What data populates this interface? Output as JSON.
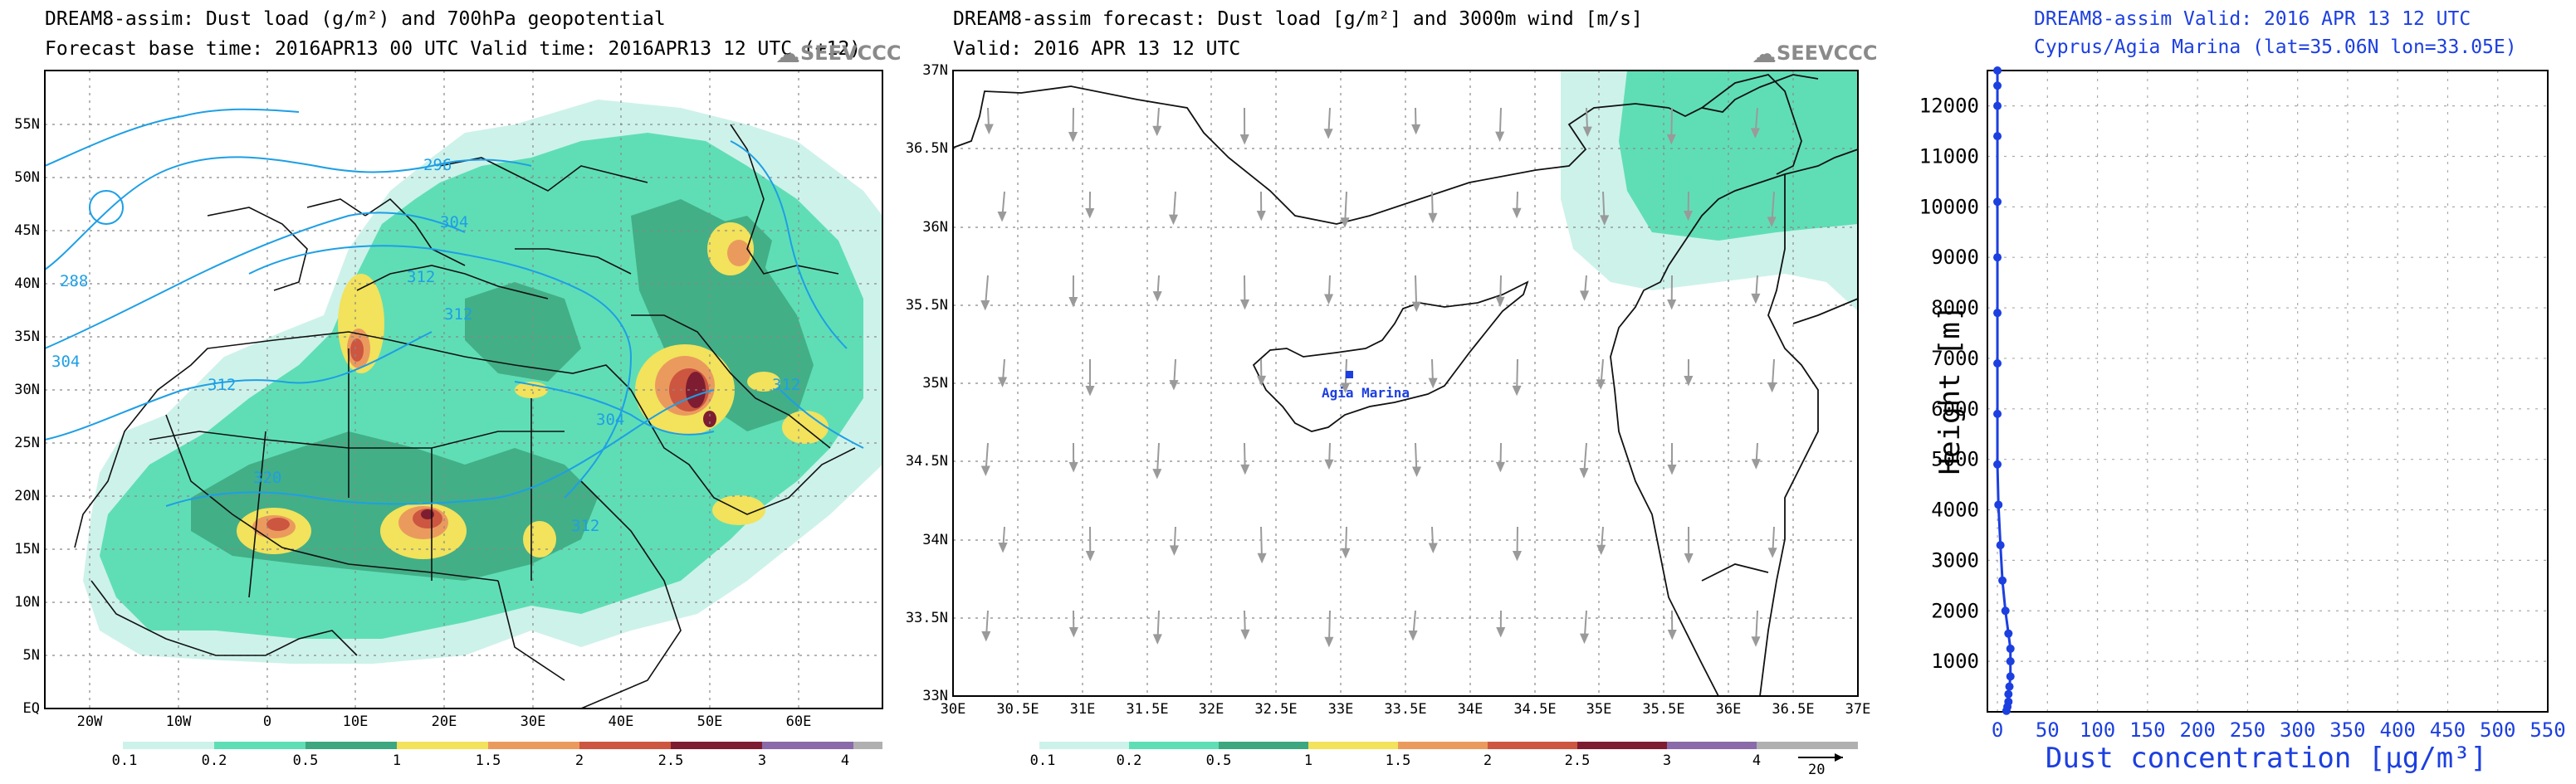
{
  "panel1": {
    "title1": "DREAM8-assim: Dust load (g/m²) and 700hPa geopotential",
    "title2": "Forecast base time: 2016APR13 00 UTC   Valid time: 2016APR13 12 UTC  (+12)",
    "logo": "SEEVCCC",
    "lat_labels": [
      "55N",
      "50N",
      "45N",
      "40N",
      "35N",
      "30N",
      "25N",
      "20N",
      "15N",
      "10N",
      "5N",
      "EQ"
    ],
    "lon_labels": [
      "20W",
      "10W",
      "0",
      "10E",
      "20E",
      "30E",
      "40E",
      "50E",
      "60E"
    ],
    "contours": [
      "296",
      "304",
      "288",
      "304",
      "312",
      "312",
      "304",
      "312",
      "312",
      "320",
      "312"
    ],
    "colorbar_labels": [
      "0.1",
      "0.2",
      "0.5",
      "1",
      "1.5",
      "2",
      "2.5",
      "3",
      "4"
    ]
  },
  "panel2": {
    "title1": "DREAM8-assim forecast: Dust load [g/m²] and 3000m wind [m/s]",
    "title2": "Valid: 2016 APR 13  12 UTC",
    "logo": "SEEVCCC",
    "lat_labels": [
      "37N",
      "36.5N",
      "36N",
      "35.5N",
      "35N",
      "34.5N",
      "34N",
      "33.5N",
      "33N"
    ],
    "lon_labels": [
      "30E",
      "30.5E",
      "31E",
      "31.5E",
      "32E",
      "32.5E",
      "33E",
      "33.5E",
      "34E",
      "34.5E",
      "35E",
      "35.5E",
      "36E",
      "36.5E",
      "37E"
    ],
    "station": "Agia  Marina",
    "colorbar_labels": [
      "0.1",
      "0.2",
      "0.5",
      "1",
      "1.5",
      "2",
      "2.5",
      "3",
      "4"
    ],
    "wind_ref": "20"
  },
  "panel3": {
    "title1": "DREAM8-assim   Valid: 2016 APR 13   12 UTC",
    "title2": "Cyprus/Agia Marina (lat=35.06N lon=33.05E)"
  },
  "colors": {
    "c01": "#cdf2ea",
    "c02": "#5fdeb5",
    "c05": "#3da77f",
    "c1": "#f2e25c",
    "c15": "#eb9a5e",
    "c2": "#cd5640",
    "c25": "#a33a4a",
    "c3": "#7e1d31",
    "c4": "#8a6aa9",
    "profile": "#1c3fe0",
    "contour": "#1e9fe5"
  },
  "chart_data": {
    "type": "line",
    "title": "DREAM8-assim   Valid: 2016 APR 13   12 UTC",
    "subtitle": "Cyprus/Agia Marina (lat=35.06N lon=33.05E)",
    "xlabel": "Dust concentration [μg/m³]",
    "ylabel": "Height [m]",
    "xlim": [
      -10,
      550
    ],
    "ylim": [
      0,
      12700
    ],
    "x_ticks": [
      0,
      50,
      100,
      150,
      200,
      250,
      300,
      350,
      400,
      450,
      500,
      550
    ],
    "y_ticks": [
      1000,
      2000,
      3000,
      4000,
      5000,
      6000,
      7000,
      8000,
      9000,
      10000,
      11000,
      12000
    ],
    "series": [
      {
        "name": "Dust concentration",
        "x": [
          9,
          10,
          11,
          11,
          12,
          13,
          13,
          13,
          11,
          8,
          5,
          3,
          1,
          0,
          0,
          0,
          0,
          0,
          0,
          0,
          0,
          0,
          0
        ],
        "y": [
          20,
          100,
          200,
          350,
          500,
          700,
          1000,
          1250,
          1550,
          2000,
          2600,
          3300,
          4100,
          4900,
          5900,
          6900,
          7900,
          9000,
          10100,
          11400,
          12000,
          12400,
          12700
        ]
      }
    ]
  }
}
